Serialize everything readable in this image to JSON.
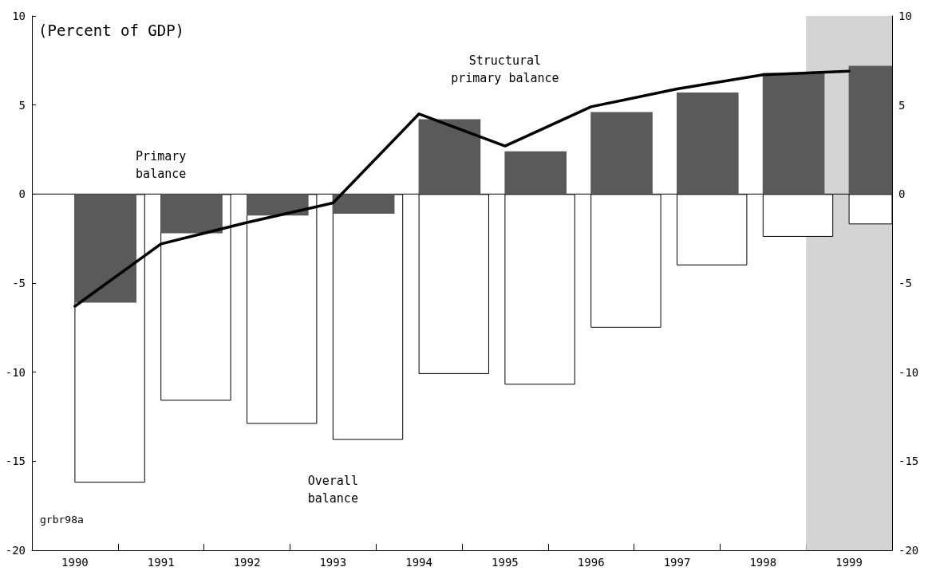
{
  "chart_data": {
    "type": "bar",
    "categories": [
      "1990",
      "1991",
      "1992",
      "1993",
      "1994",
      "1995",
      "1996",
      "1997",
      "1998",
      "1999"
    ],
    "series": [
      {
        "name": "Overall balance",
        "color": "#ffffff",
        "values": [
          -16.2,
          -11.6,
          -12.9,
          -13.8,
          -10.1,
          -10.7,
          -7.5,
          -4.0,
          -2.4,
          -1.7
        ]
      },
      {
        "name": "Primary balance",
        "color": "#5a5a5a",
        "values": [
          -6.1,
          -2.2,
          -1.2,
          -1.1,
          4.2,
          2.4,
          4.6,
          5.7,
          6.8,
          7.2
        ]
      },
      {
        "name": "Structural primary balance",
        "type": "line",
        "color": "#000000",
        "values": [
          -6.3,
          -2.8,
          -1.6,
          -0.5,
          4.5,
          2.7,
          4.9,
          5.9,
          6.7,
          6.9
        ]
      }
    ],
    "ylim": [
      -20,
      10
    ],
    "yticks": [
      -20,
      -15,
      -10,
      -5,
      0,
      5,
      10
    ],
    "y2lim": [
      -20,
      10
    ],
    "y2ticks": [
      -20,
      -15,
      -10,
      -5,
      0,
      5,
      10
    ],
    "bands": [
      {
        "axis": "x",
        "from": "1999",
        "to": "1999",
        "color": "#d4d4d4"
      }
    ],
    "ref_lines": [
      {
        "axis": "y",
        "value": 0
      }
    ],
    "annotations": [
      "(Percent of GDP)",
      "grbr98a"
    ],
    "grid": false,
    "legend": false,
    "marker": "none",
    "line_style": "solid"
  }
}
